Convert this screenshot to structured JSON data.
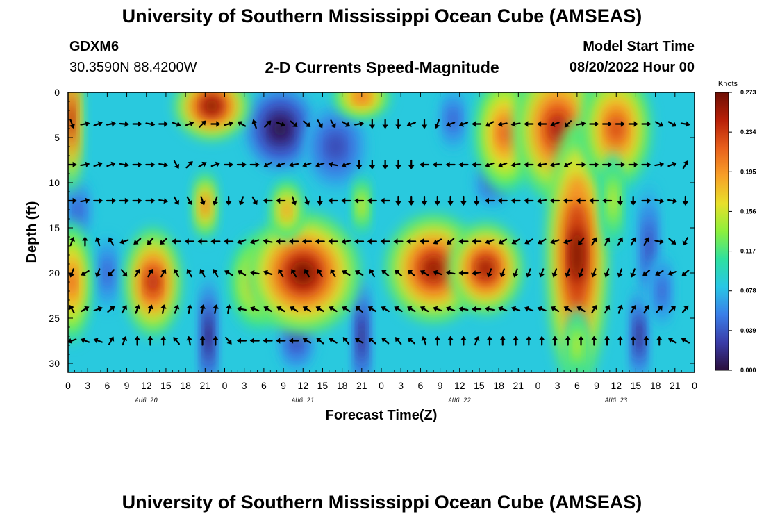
{
  "header": {
    "title": "University of Southern Mississippi Ocean Cube (AMSEAS)",
    "station_id": "GDXM6",
    "location": "30.3590N  88.4200W",
    "chart_title": "2-D Currents Speed-Magnitude",
    "start_label": "Model Start Time",
    "start_value": "08/20/2022 Hour 00"
  },
  "footer": {
    "title": "University of Southern Mississippi Ocean Cube (AMSEAS)"
  },
  "colors": {
    "scale": [
      "#2a0e3b",
      "#3a3ca8",
      "#3a7ee8",
      "#28c6e6",
      "#2ee0a0",
      "#8cf03c",
      "#e8e02a",
      "#f8a028",
      "#e8601c",
      "#b82008",
      "#6e0e04"
    ]
  },
  "chart_data": {
    "type": "heatmap",
    "title": "2-D Currents Speed-Magnitude",
    "xlabel": "Forecast Time(Z)",
    "ylabel": "Depth (ft)",
    "x_range": [
      0,
      96
    ],
    "y_range": [
      0,
      31
    ],
    "x_tick_labels": [
      "0",
      "3",
      "6",
      "9",
      "12",
      "15",
      "18",
      "21",
      "0",
      "3",
      "6",
      "9",
      "12",
      "15",
      "18",
      "21",
      "0",
      "3",
      "6",
      "9",
      "12",
      "15",
      "18",
      "21",
      "0",
      "3",
      "6",
      "9",
      "12",
      "15",
      "18",
      "21",
      "0"
    ],
    "y_ticks": [
      0,
      5,
      10,
      15,
      20,
      25,
      30
    ],
    "date_labels": [
      {
        "label": "AUG 20",
        "hour": 12
      },
      {
        "label": "AUG 21",
        "hour": 36
      },
      {
        "label": "AUG 22",
        "hour": 60
      },
      {
        "label": "AUG 23",
        "hour": 84
      }
    ],
    "depth_rows_ft": [
      3.5,
      8,
      12,
      16.5,
      20,
      24,
      27.5
    ],
    "colorbar": {
      "unit": "Knots",
      "ticks": [
        "0.000",
        "0.039",
        "0.078",
        "0.117",
        "0.156",
        "0.195",
        "0.234",
        "0.273"
      ],
      "min": 0.0,
      "max": 0.273
    },
    "speed_blobs": [
      {
        "hour": 0.5,
        "depth": 3,
        "speed": 0.26,
        "sx": 1.2,
        "sy": 6
      },
      {
        "hour": 0.5,
        "depth": 21,
        "speed": 0.22,
        "sx": 2.2,
        "sy": 5
      },
      {
        "hour": 13,
        "depth": 21,
        "speed": 0.25,
        "sx": 3.2,
        "sy": 4.5
      },
      {
        "hour": 22,
        "depth": 1.5,
        "speed": 0.27,
        "sx": 4.2,
        "sy": 2.8
      },
      {
        "hour": 21,
        "depth": 12.5,
        "speed": 0.22,
        "sx": 1.3,
        "sy": 2.8
      },
      {
        "hour": 29,
        "depth": 21,
        "speed": 0.19,
        "sx": 3.2,
        "sy": 4
      },
      {
        "hour": 36,
        "depth": 20,
        "speed": 0.27,
        "sx": 6.5,
        "sy": 5
      },
      {
        "hour": 33.5,
        "depth": 13,
        "speed": 0.2,
        "sx": 1.8,
        "sy": 2.5
      },
      {
        "hour": 45,
        "depth": 0.5,
        "speed": 0.22,
        "sx": 3.2,
        "sy": 1.8
      },
      {
        "hour": 45,
        "depth": 12.5,
        "speed": 0.17,
        "sx": 1,
        "sy": 2.5
      },
      {
        "hour": 56,
        "depth": 19.5,
        "speed": 0.26,
        "sx": 5.5,
        "sy": 4.5
      },
      {
        "hour": 64,
        "depth": 19.5,
        "speed": 0.26,
        "sx": 4.2,
        "sy": 3.8
      },
      {
        "hour": 67,
        "depth": 4.5,
        "speed": 0.22,
        "sx": 3.5,
        "sy": 5
      },
      {
        "hour": 75,
        "depth": 4,
        "speed": 0.25,
        "sx": 5,
        "sy": 6
      },
      {
        "hour": 78,
        "depth": 18,
        "speed": 0.27,
        "sx": 3.5,
        "sy": 11
      },
      {
        "hour": 84,
        "depth": 4,
        "speed": 0.23,
        "sx": 4,
        "sy": 5
      },
      {
        "hour": 78,
        "depth": 28,
        "speed": 0.16,
        "sx": 1.2,
        "sy": 3
      },
      {
        "hour": 83.5,
        "depth": 12,
        "speed": 0.16,
        "sx": 1.2,
        "sy": 4
      }
    ],
    "slow_blobs": [
      {
        "hour": 32.5,
        "depth": 4,
        "speed": 0.0,
        "sx": 4,
        "sy": 3.5
      },
      {
        "hour": 41,
        "depth": 6,
        "speed": 0.03,
        "sx": 3.5,
        "sy": 3.5
      },
      {
        "hour": 21.5,
        "depth": 27,
        "speed": 0.005,
        "sx": 1,
        "sy": 5
      },
      {
        "hour": 45,
        "depth": 27,
        "speed": 0.01,
        "sx": 1,
        "sy": 5
      },
      {
        "hour": 1.5,
        "depth": 13,
        "speed": 0.04,
        "sx": 1.5,
        "sy": 2.5
      },
      {
        "hour": 6,
        "depth": 20,
        "speed": 0.04,
        "sx": 1.3,
        "sy": 3
      },
      {
        "hour": 87.5,
        "depth": 27,
        "speed": 0.01,
        "sx": 1,
        "sy": 4
      },
      {
        "hour": 89,
        "depth": 17,
        "speed": 0.03,
        "sx": 1.2,
        "sy": 5
      },
      {
        "hour": 91,
        "depth": 22,
        "speed": 0.04,
        "sx": 1.2,
        "sy": 3
      },
      {
        "hour": 59,
        "depth": 3,
        "speed": 0.04,
        "sx": 1.5,
        "sy": 2.5
      },
      {
        "hour": 65,
        "depth": 10,
        "speed": 0.04,
        "sx": 2,
        "sy": 2
      },
      {
        "hour": 35,
        "depth": 27.5,
        "speed": 0.03,
        "sx": 2,
        "sy": 2.5
      }
    ],
    "arrow_directions": {
      "columns_every_hours": 2,
      "rows": [
        [
          160,
          80,
          70,
          80,
          95,
          90,
          100,
          90,
          110,
          70,
          45,
          90,
          75,
          300,
          340,
          45,
          110,
          130,
          130,
          150,
          150,
          120,
          80,
          180,
          180,
          180,
          250,
          180,
          200,
          250,
          250,
          270,
          240,
          260,
          260,
          270,
          270,
          250,
          225,
          80,
          90,
          90,
          90,
          90,
          90,
          120,
          120,
          100
        ],
        [
          90,
          80,
          70,
          70,
          100,
          90,
          90,
          100,
          150,
          45,
          60,
          70,
          90,
          90,
          90,
          240,
          250,
          260,
          250,
          250,
          280,
          250,
          180,
          180,
          180,
          180,
          180,
          270,
          270,
          270,
          270,
          270,
          250,
          250,
          260,
          270,
          260,
          260,
          240,
          90,
          90,
          90,
          90,
          90,
          90,
          80,
          70,
          30
        ],
        [
          90,
          80,
          90,
          90,
          90,
          90,
          90,
          100,
          150,
          150,
          160,
          200,
          180,
          200,
          150,
          270,
          270,
          160,
          160,
          180,
          270,
          270,
          270,
          270,
          270,
          180,
          180,
          180,
          180,
          180,
          180,
          180,
          270,
          270,
          270,
          270,
          260,
          270,
          270,
          270,
          270,
          270,
          180,
          180,
          90,
          100,
          100,
          180
        ],
        [
          20,
          0,
          340,
          330,
          250,
          230,
          220,
          230,
          270,
          270,
          270,
          270,
          270,
          250,
          250,
          280,
          270,
          270,
          270,
          270,
          270,
          260,
          270,
          270,
          270,
          270,
          270,
          270,
          240,
          230,
          270,
          270,
          250,
          240,
          240,
          240,
          240,
          250,
          250,
          220,
          30,
          30,
          30,
          30,
          30,
          100,
          130,
          210
        ],
        [
          200,
          240,
          200,
          220,
          140,
          30,
          30,
          30,
          330,
          330,
          330,
          330,
          300,
          300,
          280,
          290,
          330,
          330,
          330,
          330,
          330,
          300,
          300,
          330,
          310,
          310,
          310,
          300,
          290,
          280,
          270,
          260,
          200,
          200,
          200,
          200,
          200,
          200,
          200,
          200,
          200,
          200,
          200,
          200,
          230,
          240,
          250,
          230
        ],
        [
          330,
          60,
          70,
          50,
          30,
          20,
          20,
          10,
          20,
          10,
          10,
          10,
          10,
          280,
          290,
          300,
          300,
          300,
          300,
          300,
          300,
          300,
          310,
          300,
          300,
          300,
          300,
          300,
          290,
          290,
          280,
          270,
          280,
          290,
          290,
          290,
          290,
          300,
          300,
          300,
          30,
          30,
          20,
          30,
          30,
          40,
          45,
          40
        ],
        [
          250,
          290,
          290,
          30,
          20,
          0,
          0,
          0,
          320,
          350,
          0,
          0,
          140,
          270,
          270,
          270,
          270,
          270,
          300,
          310,
          300,
          320,
          300,
          310,
          310,
          320,
          310,
          340,
          0,
          0,
          0,
          20,
          0,
          0,
          0,
          0,
          0,
          0,
          0,
          0,
          0,
          0,
          0,
          0,
          0,
          0,
          300,
          300
        ]
      ]
    }
  }
}
